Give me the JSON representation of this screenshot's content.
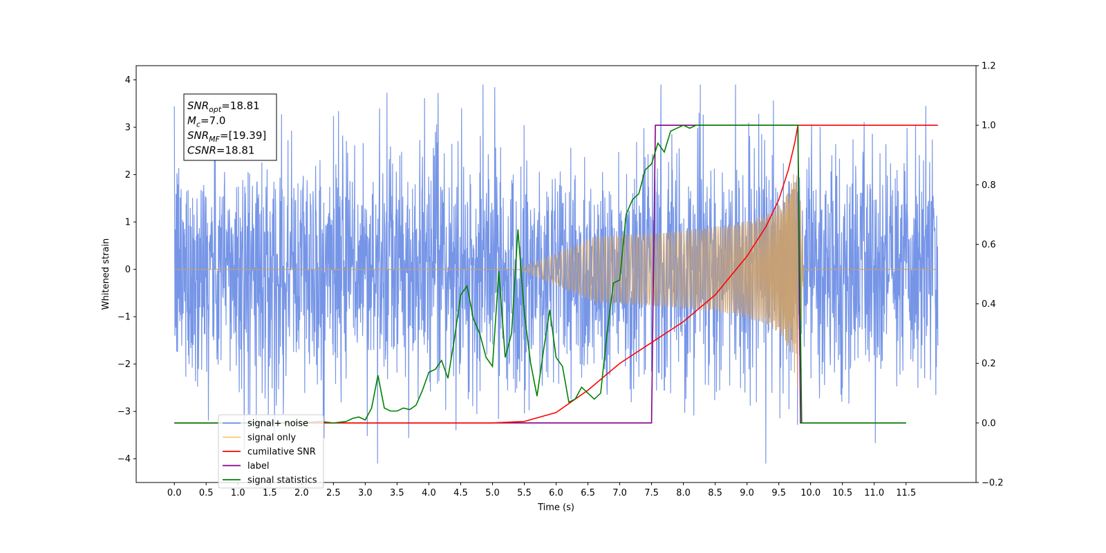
{
  "chart_data": {
    "type": "line",
    "xlabel": "Time (s)",
    "ylabel_left": "Whitened strain",
    "ylabel_right": "",
    "xlim": [
      -0.6,
      12.6
    ],
    "ylim_left": [
      -4.5,
      4.3
    ],
    "ylim_right": [
      -0.2,
      1.2
    ],
    "x_ticks": [
      "0.0",
      "0.5",
      "1.0",
      "1.5",
      "2.0",
      "2.5",
      "3.0",
      "3.5",
      "4.0",
      "4.5",
      "5.0",
      "5.5",
      "6.0",
      "6.5",
      "7.0",
      "7.5",
      "8.0",
      "8.5",
      "9.0",
      "9.5",
      "10.0",
      "10.5",
      "11.0",
      "11.5"
    ],
    "x_tick_values": [
      0,
      0.5,
      1,
      1.5,
      2,
      2.5,
      3,
      3.5,
      4,
      4.5,
      5,
      5.5,
      6,
      6.5,
      7,
      7.5,
      8,
      8.5,
      9,
      9.5,
      10,
      10.5,
      11,
      11.5
    ],
    "y_ticks_left": [
      "−4",
      "−3",
      "−2",
      "−1",
      "0",
      "1",
      "2",
      "3",
      "4"
    ],
    "y_tick_values_left": [
      -4,
      -3,
      -2,
      -1,
      0,
      1,
      2,
      3,
      4
    ],
    "y_ticks_right": [
      "−0.2",
      "0.0",
      "0.2",
      "0.4",
      "0.6",
      "0.8",
      "1.0",
      "1.2"
    ],
    "y_tick_values_right": [
      -0.2,
      0,
      0.2,
      0.4,
      0.6,
      0.8,
      1.0,
      1.2
    ],
    "grid": false,
    "legend_placement": "bottom-left",
    "legend": [
      {
        "label": "signal+ noise",
        "color": "#6f8fe6"
      },
      {
        "label": "signal only",
        "color": "#ffc56b"
      },
      {
        "label": "cumilative SNR",
        "color": "#ff0000"
      },
      {
        "label": "label",
        "color": "#800080"
      },
      {
        "label": "signal statistics",
        "color": "#008000"
      }
    ],
    "annotation": {
      "lines": [
        {
          "var": "SNR",
          "sub": "opt",
          "value": "=18.81"
        },
        {
          "var": "M",
          "sub": "c",
          "value": "=7.0"
        },
        {
          "var": "SNR",
          "sub": "MF",
          "value": "=[19.39]"
        },
        {
          "var": "CSNR",
          "sub": "",
          "value": "=18.81"
        }
      ]
    },
    "series": [
      {
        "name": "signal+ noise",
        "axis": "left",
        "color": "#6f8fe6",
        "description_range": [
          0,
          12
        ],
        "envelope_values": {
          "typical_amplitude": 2.0,
          "max_peak": 3.9,
          "min_peak": -4.1
        }
      },
      {
        "name": "signal only",
        "axis": "left",
        "color": "#c9a070",
        "chirp": {
          "start": 5.4,
          "merger": 9.78,
          "end": 9.9,
          "peak_amplitude": 2.9
        }
      },
      {
        "name": "cumilative SNR",
        "axis": "right",
        "color": "#ff0000",
        "x": [
          0,
          5.0,
          5.5,
          6.0,
          6.5,
          7.0,
          7.5,
          8.0,
          8.5,
          9.0,
          9.3,
          9.5,
          9.65,
          9.75,
          9.8,
          10.0,
          11.5,
          12.0
        ],
        "y": [
          0,
          0,
          0.005,
          0.035,
          0.11,
          0.2,
          0.27,
          0.34,
          0.43,
          0.56,
          0.66,
          0.75,
          0.85,
          0.94,
          1.0,
          1.0,
          1.0,
          1.0
        ]
      },
      {
        "name": "label",
        "axis": "right",
        "color": "#800080",
        "x": [
          0,
          7.5,
          7.56,
          9.8,
          9.84,
          11.5
        ],
        "y": [
          0,
          0,
          1,
          1,
          0,
          0
        ]
      },
      {
        "name": "signal statistics",
        "axis": "right",
        "color": "#008000",
        "x": [
          0,
          2.0,
          2.3,
          2.5,
          2.7,
          2.8,
          2.9,
          3.0,
          3.1,
          3.2,
          3.3,
          3.4,
          3.5,
          3.6,
          3.7,
          3.8,
          3.9,
          4.0,
          4.1,
          4.2,
          4.3,
          4.4,
          4.5,
          4.6,
          4.7,
          4.8,
          4.9,
          5.0,
          5.1,
          5.2,
          5.3,
          5.4,
          5.5,
          5.6,
          5.7,
          5.8,
          5.9,
          6.0,
          6.1,
          6.2,
          6.3,
          6.4,
          6.5,
          6.6,
          6.7,
          6.8,
          6.9,
          7.0,
          7.1,
          7.2,
          7.3,
          7.4,
          7.5,
          7.6,
          7.7,
          7.8,
          7.9,
          8.0,
          8.1,
          8.2,
          9.5,
          9.7,
          9.8,
          9.86,
          9.9,
          11.5
        ],
        "y": [
          0,
          0,
          0.005,
          0,
          0.005,
          0.015,
          0.02,
          0.01,
          0.05,
          0.16,
          0.05,
          0.04,
          0.04,
          0.05,
          0.045,
          0.06,
          0.11,
          0.17,
          0.18,
          0.21,
          0.15,
          0.28,
          0.43,
          0.46,
          0.35,
          0.3,
          0.22,
          0.19,
          0.51,
          0.22,
          0.3,
          0.65,
          0.37,
          0.2,
          0.09,
          0.24,
          0.38,
          0.22,
          0.19,
          0.07,
          0.08,
          0.12,
          0.1,
          0.08,
          0.1,
          0.3,
          0.47,
          0.48,
          0.7,
          0.75,
          0.77,
          0.85,
          0.87,
          0.94,
          0.91,
          0.98,
          0.99,
          1.0,
          0.99,
          1.0,
          1.0,
          1.0,
          1.0,
          0,
          0,
          0
        ]
      }
    ]
  }
}
